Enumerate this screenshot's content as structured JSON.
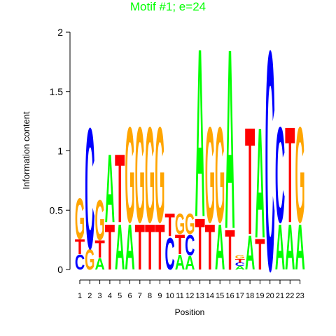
{
  "chart_data": {
    "type": "logo",
    "title": "Motif #1; e=24",
    "title_color": "#00ff00",
    "x_label": "Position",
    "y_label": "Information content",
    "categories": [
      "1",
      "2",
      "3",
      "4",
      "5",
      "6",
      "7",
      "8",
      "9",
      "10",
      "11",
      "12",
      "13",
      "14",
      "15",
      "16",
      "17",
      "18",
      "19",
      "20",
      "21",
      "22",
      "23"
    ],
    "ylim": [
      0,
      2
    ],
    "yticks": [
      0,
      0.5,
      1,
      1.5,
      2
    ],
    "colors": {
      "A": "#00ff00",
      "C": "#0000ff",
      "G": "#ffa500",
      "T": "#ff0000"
    },
    "stacks": [
      [
        {
          "letter": "C",
          "value": 0.13
        },
        {
          "letter": "T",
          "value": 0.13
        },
        {
          "letter": "G",
          "value": 0.36
        }
      ],
      [
        {
          "letter": "G",
          "value": 0.18
        },
        {
          "letter": "C",
          "value": 1.06
        }
      ],
      [
        {
          "letter": "A",
          "value": 0.1
        },
        {
          "letter": "T",
          "value": 0.15
        },
        {
          "letter": "G",
          "value": 0.35
        }
      ],
      [
        {
          "letter": "T",
          "value": 0.4
        },
        {
          "letter": "A",
          "value": 0.6
        }
      ],
      [
        {
          "letter": "A",
          "value": 0.4
        },
        {
          "letter": "T",
          "value": 0.6
        }
      ],
      [
        {
          "letter": "A",
          "value": 0.4
        },
        {
          "letter": "G",
          "value": 0.84
        }
      ],
      [
        {
          "letter": "T",
          "value": 0.4
        },
        {
          "letter": "G",
          "value": 0.84
        }
      ],
      [
        {
          "letter": "T",
          "value": 0.4
        },
        {
          "letter": "G",
          "value": 0.84
        }
      ],
      [
        {
          "letter": "T",
          "value": 0.4
        },
        {
          "letter": "G",
          "value": 0.84
        }
      ],
      [
        {
          "letter": "C",
          "value": 0.28
        },
        {
          "letter": "T",
          "value": 0.2
        }
      ],
      [
        {
          "letter": "A",
          "value": 0.13
        },
        {
          "letter": "T",
          "value": 0.17
        },
        {
          "letter": "G",
          "value": 0.18
        }
      ],
      [
        {
          "letter": "A",
          "value": 0.12
        },
        {
          "letter": "C",
          "value": 0.18
        },
        {
          "letter": "G",
          "value": 0.18
        }
      ],
      [
        {
          "letter": "T",
          "value": 0.45
        },
        {
          "letter": "A",
          "value": 1.48
        }
      ],
      [
        {
          "letter": "T",
          "value": 0.4
        },
        {
          "letter": "G",
          "value": 0.84
        }
      ],
      [
        {
          "letter": "A",
          "value": 0.4
        },
        {
          "letter": "G",
          "value": 0.84
        }
      ],
      [
        {
          "letter": "T",
          "value": 0.35
        },
        {
          "letter": "A",
          "value": 1.58
        }
      ],
      [
        {
          "letter": "A",
          "value": 0.03
        },
        {
          "letter": "C",
          "value": 0.03
        },
        {
          "letter": "T",
          "value": 0.03
        },
        {
          "letter": "G",
          "value": 0.03
        }
      ],
      [
        {
          "letter": "A",
          "value": 0.3
        },
        {
          "letter": "T",
          "value": 0.94
        }
      ],
      [
        {
          "letter": "T",
          "value": 0.27
        },
        {
          "letter": "A",
          "value": 0.97
        }
      ],
      [
        {
          "letter": "C",
          "value": 1.93
        }
      ],
      [
        {
          "letter": "A",
          "value": 0.4
        },
        {
          "letter": "C",
          "value": 0.84
        }
      ],
      [
        {
          "letter": "A",
          "value": 0.4
        },
        {
          "letter": "T",
          "value": 0.84
        }
      ],
      [
        {
          "letter": "A",
          "value": 0.4
        },
        {
          "letter": "G",
          "value": 0.84
        }
      ]
    ]
  }
}
